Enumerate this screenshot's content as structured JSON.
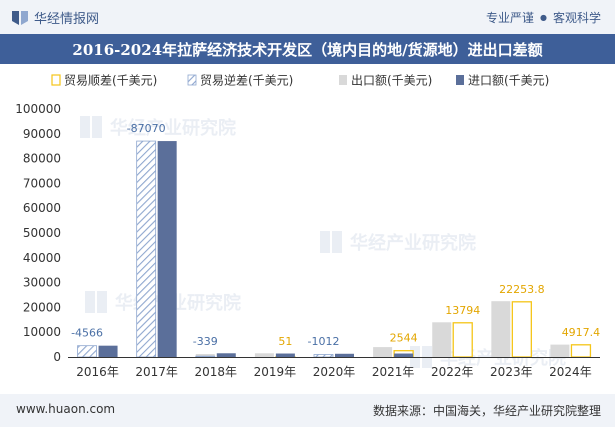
{
  "header": {
    "brand": "华经情报网",
    "tag1": "专业严谨",
    "tag2": "客观科学",
    "title": "2016-2024年拉萨经济技术开发区（境内目的地/货源地）进出口差额"
  },
  "footer": {
    "website": "www.huaon.com",
    "source": "数据来源：中国海关，华经产业研究院整理"
  },
  "watermark": "华经产业研究院",
  "colors": {
    "surplus": "#f5c518",
    "deficit": "#8fa7cf",
    "export": "#d9d9d9",
    "import": "#5b6f9a"
  },
  "chart_data": {
    "type": "bar",
    "title": "2016-2024年拉萨经济技术开发区（境内目的地/货源地）进出口差额",
    "categories": [
      "2016年",
      "2017年",
      "2018年",
      "2019年",
      "2020年",
      "2021年",
      "2022年",
      "2023年",
      "2024年"
    ],
    "ylim": [
      0,
      100000
    ],
    "yticks": [
      0,
      10000,
      20000,
      30000,
      40000,
      50000,
      60000,
      70000,
      80000,
      90000,
      100000
    ],
    "series": [
      {
        "name": "贸易顺差(千美元)",
        "key": "surplus",
        "values": [
          null,
          null,
          null,
          51,
          null,
          2544,
          13794,
          22253.8,
          4917.4
        ]
      },
      {
        "name": "贸易逆差(千美元)",
        "key": "deficit",
        "values": [
          4566,
          87070,
          339,
          null,
          1012,
          null,
          null,
          null,
          null
        ]
      },
      {
        "name": "出口额(千美元)",
        "key": "export",
        "values": [
          0,
          0,
          1200,
          1500,
          300,
          4000,
          14000,
          22500,
          5000
        ]
      },
      {
        "name": "进口额(千美元)",
        "key": "import",
        "values": [
          4566,
          87070,
          1500,
          1400,
          1300,
          1400,
          0,
          0,
          0
        ]
      }
    ],
    "labels": [
      "-4566",
      "-87070",
      "-339",
      "51",
      "-1012",
      "2544",
      "13794",
      "22253.8",
      "4917.4"
    ],
    "label_kind": [
      "deficit",
      "deficit",
      "deficit",
      "surplus",
      "deficit",
      "surplus",
      "surplus",
      "surplus",
      "surplus"
    ]
  }
}
